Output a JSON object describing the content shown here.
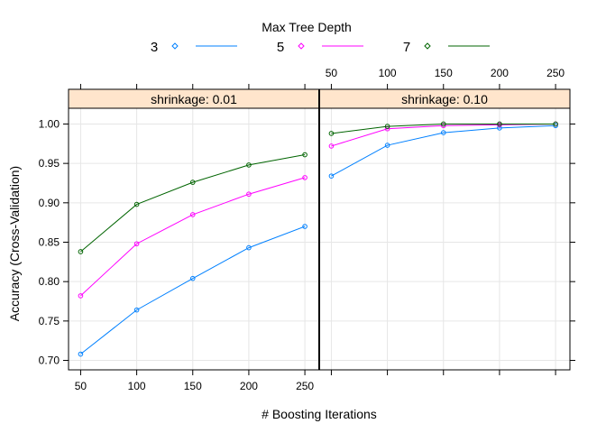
{
  "chart_data": {
    "type": "line",
    "xlabel": "# Boosting Iterations",
    "ylabel": "Accuracy (Cross-Validation)",
    "legend": {
      "title": "Max Tree Depth",
      "position": "top",
      "entries": [
        {
          "label": "3",
          "color": "#0080ff"
        },
        {
          "label": "5",
          "color": "#ff00ff"
        },
        {
          "label": "7",
          "color": "#006400"
        }
      ]
    },
    "x_ticks": [
      50,
      100,
      150,
      200,
      250
    ],
    "y_ticks": [
      "0.70",
      "0.75",
      "0.80",
      "0.85",
      "0.90",
      "0.95",
      "1.00"
    ],
    "xlim": [
      40,
      262
    ],
    "ylim": [
      0.688,
      1.02
    ],
    "grid": true,
    "panels": [
      {
        "strip": "shrinkage: 0.01",
        "x": [
          50,
          100,
          150,
          200,
          250
        ],
        "series": [
          {
            "name": "3",
            "color": "#0080ff",
            "values": [
              0.708,
              0.764,
              0.804,
              0.843,
              0.87
            ]
          },
          {
            "name": "5",
            "color": "#ff00ff",
            "values": [
              0.782,
              0.848,
              0.885,
              0.911,
              0.932
            ]
          },
          {
            "name": "7",
            "color": "#006400",
            "values": [
              0.838,
              0.898,
              0.926,
              0.948,
              0.961
            ]
          }
        ]
      },
      {
        "strip": "shrinkage: 0.10",
        "x": [
          50,
          100,
          150,
          200,
          250
        ],
        "series": [
          {
            "name": "3",
            "color": "#0080ff",
            "values": [
              0.934,
              0.973,
              0.989,
              0.995,
              0.998
            ]
          },
          {
            "name": "5",
            "color": "#ff00ff",
            "values": [
              0.972,
              0.994,
              0.998,
              0.999,
              1.0
            ]
          },
          {
            "name": "7",
            "color": "#006400",
            "values": [
              0.988,
              0.997,
              1.0,
              1.0,
              1.0
            ]
          }
        ]
      }
    ]
  }
}
